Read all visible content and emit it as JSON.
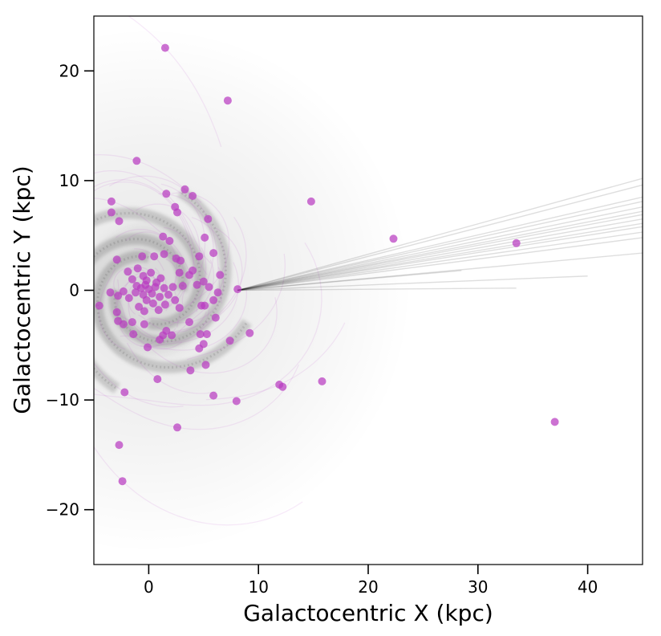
{
  "chart_data": {
    "type": "scatter",
    "title": "",
    "xlabel": "Galactocentric X (kpc)",
    "ylabel": "Galactocentric Y (kpc)",
    "xlim": [
      -5,
      45
    ],
    "ylim": [
      -25,
      25
    ],
    "xticks": [
      0,
      10,
      20,
      30,
      40
    ],
    "yticks": [
      -20,
      -10,
      0,
      10,
      20
    ],
    "xtick_labels": [
      "0",
      "10",
      "20",
      "30",
      "40"
    ],
    "ytick_labels": [
      "−20",
      "−10",
      "0",
      "10",
      "20"
    ],
    "grid": false,
    "background": "grey spiral-galaxy density image centered at (0, 0)",
    "point_color": "#b83cc0",
    "orbit_color": "#c060d0",
    "sun_trail_color": "#000000",
    "reference_point": {
      "x": 8.1,
      "y": 0.0
    },
    "sun_trail_endpoints": [
      {
        "x": 45,
        "y": 8.5
      },
      {
        "x": 45,
        "y": 8.1
      },
      {
        "x": 45,
        "y": 7.6
      },
      {
        "x": 45,
        "y": 7.2
      },
      {
        "x": 45,
        "y": 6.9
      },
      {
        "x": 45,
        "y": 6.5
      },
      {
        "x": 45,
        "y": 6.1
      },
      {
        "x": 45,
        "y": 5.8
      },
      {
        "x": 45,
        "y": 5.3
      },
      {
        "x": 45,
        "y": 4.8
      },
      {
        "x": 45,
        "y": 9.6
      },
      {
        "x": 45,
        "y": 10.2
      },
      {
        "x": 45,
        "y": 3.4
      },
      {
        "x": 40,
        "y": 1.3
      },
      {
        "x": 33.5,
        "y": 0.2
      },
      {
        "x": 28.5,
        "y": 1.8
      }
    ],
    "points": [
      {
        "x": 1.5,
        "y": 22.1
      },
      {
        "x": 7.2,
        "y": 17.3
      },
      {
        "x": -1.1,
        "y": 11.8
      },
      {
        "x": 3.3,
        "y": 9.2
      },
      {
        "x": 1.6,
        "y": 8.8
      },
      {
        "x": 4.0,
        "y": 8.6
      },
      {
        "x": -3.4,
        "y": 8.1
      },
      {
        "x": 14.8,
        "y": 8.1
      },
      {
        "x": 2.4,
        "y": 7.6
      },
      {
        "x": -3.4,
        "y": 7.1
      },
      {
        "x": 2.6,
        "y": 7.1
      },
      {
        "x": -2.7,
        "y": 6.3
      },
      {
        "x": 5.4,
        "y": 6.5
      },
      {
        "x": 1.3,
        "y": 4.9
      },
      {
        "x": 5.1,
        "y": 4.8
      },
      {
        "x": 22.3,
        "y": 4.7
      },
      {
        "x": 1.9,
        "y": 4.5
      },
      {
        "x": 33.5,
        "y": 4.3
      },
      {
        "x": 5.9,
        "y": 3.4
      },
      {
        "x": 1.4,
        "y": 3.3
      },
      {
        "x": 4.6,
        "y": 3.1
      },
      {
        "x": -0.6,
        "y": 3.1
      },
      {
        "x": 0.5,
        "y": 3.1
      },
      {
        "x": -2.9,
        "y": 2.8
      },
      {
        "x": 2.5,
        "y": 2.9
      },
      {
        "x": 2.9,
        "y": 2.7
      },
      {
        "x": 4.0,
        "y": 1.8
      },
      {
        "x": 3.7,
        "y": 1.4
      },
      {
        "x": 6.5,
        "y": 1.4
      },
      {
        "x": 2.8,
        "y": 1.6
      },
      {
        "x": 8.1,
        "y": 0.1
      },
      {
        "x": 5.5,
        "y": 0.3
      },
      {
        "x": 6.3,
        "y": -0.2
      },
      {
        "x": 4.4,
        "y": 0.5
      },
      {
        "x": 5.0,
        "y": 0.8
      },
      {
        "x": 5.9,
        "y": -0.9
      },
      {
        "x": 4.8,
        "y": -1.4
      },
      {
        "x": 5.1,
        "y": -1.4
      },
      {
        "x": 6.1,
        "y": -2.5
      },
      {
        "x": 2.8,
        "y": -1.6
      },
      {
        "x": 3.7,
        "y": -2.9
      },
      {
        "x": -0.5,
        "y": 1.3
      },
      {
        "x": -1.5,
        "y": 1.0
      },
      {
        "x": -1.1,
        "y": 0.4
      },
      {
        "x": -0.7,
        "y": 0.2
      },
      {
        "x": -0.3,
        "y": 0.5
      },
      {
        "x": 0.0,
        "y": 0.1
      },
      {
        "x": 0.3,
        "y": -0.3
      },
      {
        "x": 0.6,
        "y": 0.3
      },
      {
        "x": 1.0,
        "y": -0.6
      },
      {
        "x": 1.4,
        "y": 0.2
      },
      {
        "x": 1.8,
        "y": -0.4
      },
      {
        "x": 2.2,
        "y": 0.3
      },
      {
        "x": -0.2,
        "y": -0.9
      },
      {
        "x": 0.4,
        "y": -1.2
      },
      {
        "x": -0.9,
        "y": -1.5
      },
      {
        "x": 0.9,
        "y": -1.8
      },
      {
        "x": -1.2,
        "y": -0.2
      },
      {
        "x": -1.8,
        "y": -0.7
      },
      {
        "x": -2.3,
        "y": -0.1
      },
      {
        "x": -2.8,
        "y": -0.5
      },
      {
        "x": -3.5,
        "y": -0.2
      },
      {
        "x": -4.5,
        "y": -1.4
      },
      {
        "x": -2.9,
        "y": -2.0
      },
      {
        "x": -2.8,
        "y": -2.8
      },
      {
        "x": -2.3,
        "y": -3.1
      },
      {
        "x": -1.5,
        "y": -2.9
      },
      {
        "x": -0.4,
        "y": -3.1
      },
      {
        "x": -1.4,
        "y": -4.0
      },
      {
        "x": 1.3,
        "y": -4.1
      },
      {
        "x": 1.6,
        "y": -3.7
      },
      {
        "x": 2.1,
        "y": -4.1
      },
      {
        "x": 1.0,
        "y": -4.5
      },
      {
        "x": 4.7,
        "y": -4.0
      },
      {
        "x": 5.3,
        "y": -4.0
      },
      {
        "x": 5.0,
        "y": -4.9
      },
      {
        "x": 4.6,
        "y": -5.3
      },
      {
        "x": 7.4,
        "y": -4.6
      },
      {
        "x": 9.2,
        "y": -3.9
      },
      {
        "x": -0.1,
        "y": -5.2
      },
      {
        "x": 3.8,
        "y": -7.3
      },
      {
        "x": 5.2,
        "y": -6.8
      },
      {
        "x": 0.8,
        "y": -8.1
      },
      {
        "x": 15.8,
        "y": -8.3
      },
      {
        "x": 11.9,
        "y": -8.6
      },
      {
        "x": 12.2,
        "y": -8.8
      },
      {
        "x": -2.2,
        "y": -9.3
      },
      {
        "x": 5.9,
        "y": -9.6
      },
      {
        "x": 8.0,
        "y": -10.1
      },
      {
        "x": 37.0,
        "y": -12.0
      },
      {
        "x": 2.6,
        "y": -12.5
      },
      {
        "x": -2.7,
        "y": -14.1
      },
      {
        "x": -2.4,
        "y": -17.4
      },
      {
        "x": -0.2,
        "y": 0.9
      },
      {
        "x": 0.7,
        "y": 0.7
      },
      {
        "x": -0.5,
        "y": -0.4
      },
      {
        "x": 0.2,
        "y": 1.6
      },
      {
        "x": 1.1,
        "y": 1.1
      },
      {
        "x": -1.0,
        "y": 2.0
      },
      {
        "x": -1.9,
        "y": 1.7
      },
      {
        "x": 3.1,
        "y": 0.4
      },
      {
        "x": 2.4,
        "y": -0.9
      },
      {
        "x": 1.5,
        "y": -1.3
      },
      {
        "x": -0.4,
        "y": -1.9
      }
    ]
  }
}
